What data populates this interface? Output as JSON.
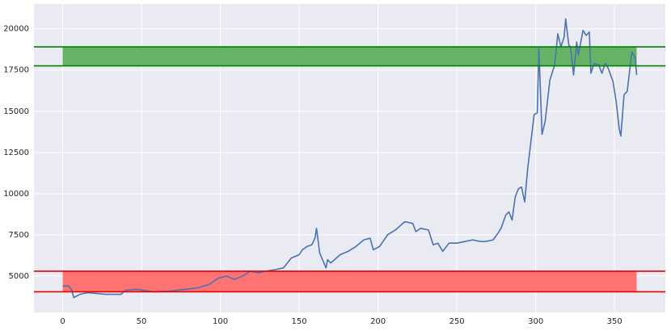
{
  "chart_data": {
    "type": "line",
    "x": [
      0,
      4,
      6,
      7,
      11,
      16,
      27,
      37,
      40,
      47,
      58,
      68,
      78,
      86,
      93,
      99,
      104,
      109,
      114,
      119,
      124,
      129,
      135,
      140,
      145,
      150,
      152,
      155,
      158,
      160,
      161,
      163,
      167,
      168,
      170,
      176,
      181,
      186,
      191,
      195,
      197,
      201,
      206,
      211,
      217,
      222,
      224,
      227,
      232,
      235,
      238,
      241,
      245,
      250,
      255,
      260,
      265,
      268,
      273,
      276,
      278,
      281,
      283,
      285,
      287,
      289,
      291,
      293,
      295,
      297,
      299,
      301,
      302,
      304,
      306,
      309,
      312,
      314,
      316,
      318,
      319,
      321,
      322,
      324,
      326,
      327,
      330,
      332,
      334,
      335,
      337,
      340,
      342,
      344,
      346,
      349,
      351,
      353,
      354,
      356,
      358,
      360,
      361,
      363,
      364
    ],
    "series": [
      {
        "color": "#4c72b0",
        "values": [
          4400,
          4400,
          4100,
          3700,
          3900,
          4000,
          3900,
          3900,
          4150,
          4200,
          4050,
          4100,
          4200,
          4300,
          4500,
          4900,
          5000,
          4800,
          5000,
          5300,
          5200,
          5300,
          5400,
          5500,
          6100,
          6300,
          6600,
          6800,
          6900,
          7300,
          7900,
          6400,
          5500,
          6000,
          5800,
          6300,
          6500,
          6800,
          7200,
          7300,
          6600,
          6800,
          7500,
          7800,
          8300,
          8200,
          7700,
          7900,
          7800,
          6900,
          7000,
          6500,
          7000,
          7000,
          7100,
          7200,
          7100,
          7100,
          7200,
          7600,
          7900,
          8700,
          8900,
          8400,
          9800,
          10300,
          10400,
          9500,
          11600,
          13200,
          14800,
          14900,
          18800,
          13600,
          14400,
          16900,
          17800,
          19700,
          18900,
          19500,
          20600,
          19000,
          18900,
          17200,
          19200,
          18400,
          19900,
          19600,
          19800,
          17300,
          17900,
          17800,
          17300,
          17900,
          17600,
          16800,
          15600,
          13900,
          13500,
          16000,
          16200,
          17800,
          18600,
          18300,
          17200
        ]
      }
    ],
    "hlines": [
      {
        "value": 18900,
        "color": "#008000"
      },
      {
        "value": 17750,
        "color": "#008000"
      },
      {
        "value": 5300,
        "color": "#e50000"
      },
      {
        "value": 4050,
        "color": "#e50000"
      }
    ],
    "spans": [
      {
        "y": [
          17750,
          18900
        ],
        "x": [
          0,
          364
        ],
        "color": "#66b366"
      },
      {
        "y": [
          4050,
          5300
        ],
        "x": [
          0,
          364
        ],
        "color": "#ff7373"
      }
    ],
    "xlim": [
      -18.2,
      382.2
    ],
    "xticks": [
      0,
      50,
      100,
      150,
      200,
      250,
      300,
      350
    ],
    "ylim": [
      2800,
      21500
    ],
    "yticks": [
      5000,
      7500,
      10000,
      12500,
      15000,
      17500,
      20000
    ],
    "grid": true
  }
}
